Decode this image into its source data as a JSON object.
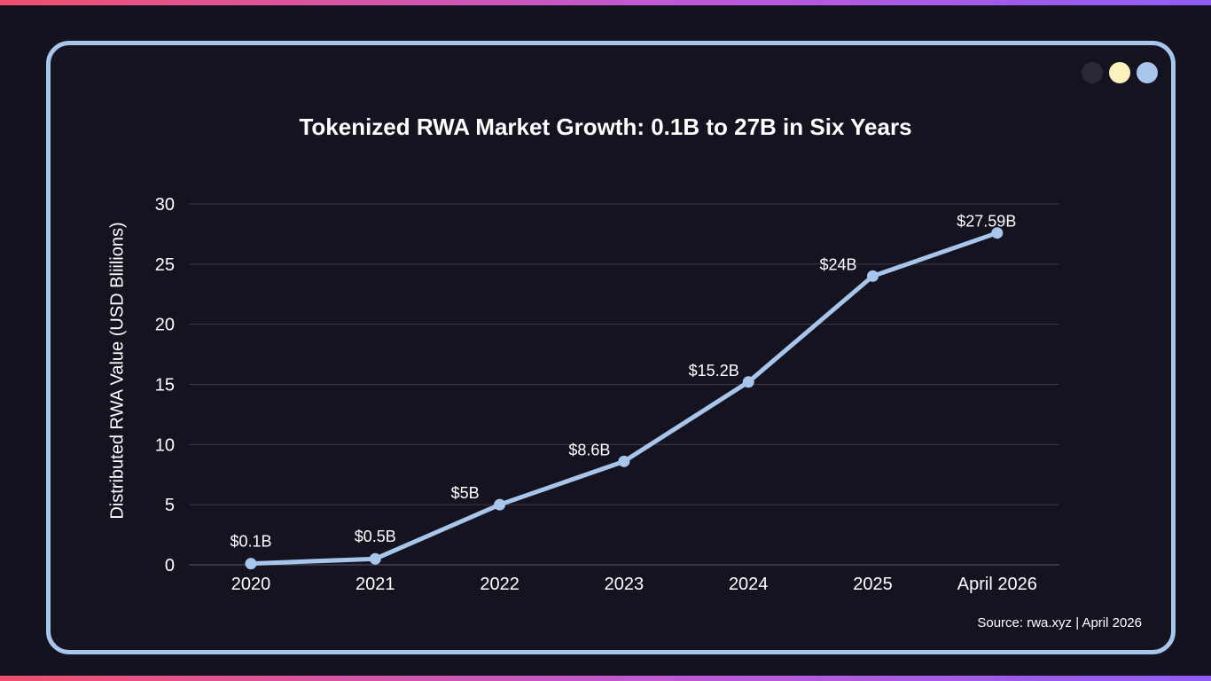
{
  "colors": {
    "background": "#13121f",
    "frame": "#a8c5ec",
    "line": "#a8c5ec",
    "grid": "#3a3a48",
    "text": "#ffffff",
    "dot_dark": "#2a2a36",
    "dot_yellow": "#fbf1bd",
    "dot_blue": "#a8c5ec"
  },
  "source": "Source: rwa.xyz | April 2026",
  "chart_data": {
    "type": "line",
    "title": "Tokenized RWA Market Growth: 0.1B to 27B in Six Years",
    "xlabel": "",
    "ylabel": "Distributed RWA Value (USD Bliilions)",
    "categories": [
      "2020",
      "2021",
      "2022",
      "2023",
      "2024",
      "2025",
      "April 2026"
    ],
    "series": [
      {
        "name": "Distributed RWA Value",
        "values": [
          0.1,
          0.5,
          5,
          8.6,
          15.2,
          24,
          27.59
        ],
        "labels": [
          "$0.1B",
          "$0.5B",
          "$5B",
          "$8.6B",
          "$15.2B",
          "$24B",
          "$27.59B"
        ]
      }
    ],
    "ylim": [
      0,
      30
    ],
    "yticks": [
      0,
      5,
      10,
      15,
      20,
      25,
      30
    ],
    "grid": true
  }
}
